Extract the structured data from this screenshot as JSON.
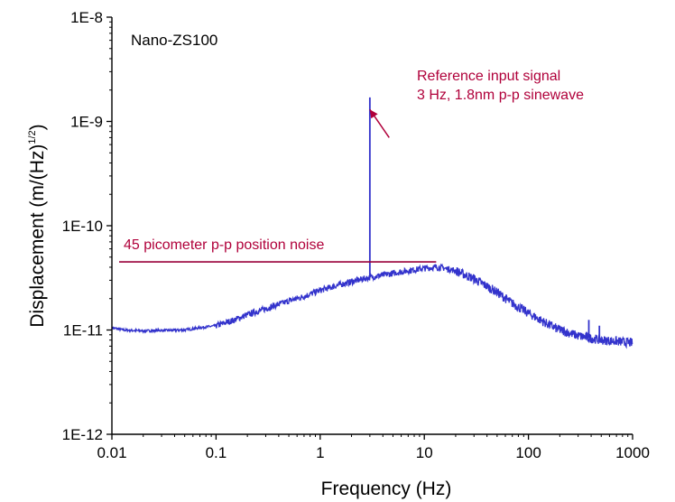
{
  "chart_data": {
    "type": "line",
    "title": "",
    "inset_label": "Nano-ZS100",
    "xlabel": "Frequency (Hz)",
    "ylabel_main": "Displacement (m/(Hz)",
    "ylabel_sup": "1/2",
    "ylabel_end": ")",
    "x_scale": "log",
    "y_scale": "log",
    "xlim": [
      0.01,
      1000
    ],
    "ylim": [
      1e-12,
      1e-08
    ],
    "x_ticks": [
      {
        "value": 0.01,
        "label": "0.01"
      },
      {
        "value": 0.1,
        "label": "0.1"
      },
      {
        "value": 1,
        "label": "1"
      },
      {
        "value": 10,
        "label": "10"
      },
      {
        "value": 100,
        "label": "100"
      },
      {
        "value": 1000,
        "label": "1000"
      }
    ],
    "y_ticks": [
      {
        "value": 1e-08,
        "label": "1E-8"
      },
      {
        "value": 1e-09,
        "label": "1E-9"
      },
      {
        "value": 1e-10,
        "label": "1E-10"
      },
      {
        "value": 1e-11,
        "label": "1E-11"
      },
      {
        "value": 1e-12,
        "label": "1E-12"
      }
    ],
    "series": [
      {
        "color": "#3333cc",
        "x": [
          0.01,
          0.013,
          0.02,
          0.03,
          0.05,
          0.07,
          0.1,
          0.15,
          0.2,
          0.3,
          0.5,
          0.7,
          1,
          1.5,
          2,
          3,
          5,
          7,
          10,
          13,
          15,
          20,
          30,
          50,
          70,
          100,
          150,
          200,
          300,
          500,
          700,
          1000
        ],
        "y": [
          1.05e-11,
          1e-11,
          9.8e-12,
          9.9e-12,
          1e-11,
          1.05e-11,
          1.1e-11,
          1.25e-11,
          1.4e-11,
          1.6e-11,
          1.9e-11,
          2.1e-11,
          2.4e-11,
          2.7e-11,
          2.9e-11,
          3.2e-11,
          3.5e-11,
          3.7e-11,
          3.9e-11,
          4e-11,
          3.95e-11,
          3.7e-11,
          3.1e-11,
          2.3e-11,
          1.8e-11,
          1.45e-11,
          1.15e-11,
          1e-11,
          8.8e-12,
          8e-12,
          7.8e-12,
          7.5e-12
        ]
      }
    ],
    "spikes": [
      {
        "x": 3,
        "y": 1.7e-09
      },
      {
        "x": 200,
        "y": 1.1e-11
      },
      {
        "x": 380,
        "y": 1.25e-11
      },
      {
        "x": 480,
        "y": 1.1e-11
      }
    ],
    "noise_line": {
      "y": 4.5e-11,
      "x_start": 0.01,
      "x_end": 13,
      "label": "45 picometer p-p position noise",
      "color": "#99003a"
    },
    "annotation": {
      "line1": "Reference input signal",
      "line2": "3 Hz, 1.8nm p-p sinewave",
      "arrow_to": {
        "x": 3,
        "y": 1.3e-09
      },
      "arrow_from": {
        "x": 4.6,
        "y": 7e-10
      }
    }
  }
}
